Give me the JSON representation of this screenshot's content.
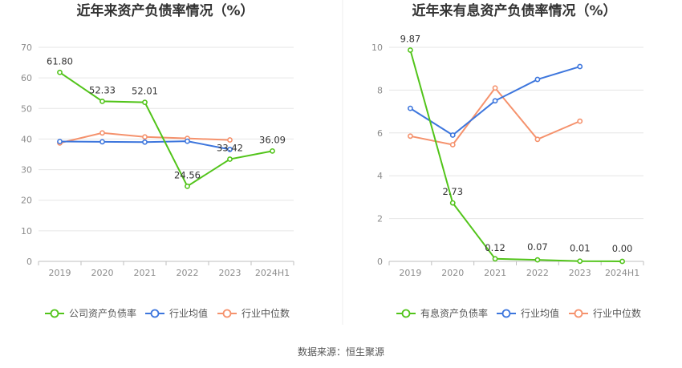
{
  "source_note": "数据来源：恒生聚源",
  "colors": {
    "green": "#52c41a",
    "blue": "#3d76dd",
    "orange": "#f5926d",
    "grid": "#e6e6e6",
    "axis": "#bfbfbf"
  },
  "chart_data": [
    {
      "type": "line",
      "title": "近年来资产负债率情况（%）",
      "categories": [
        "2019",
        "2020",
        "2021",
        "2022",
        "2023",
        "2024H1"
      ],
      "ylim": [
        0,
        70
      ],
      "yticks": [
        0,
        10,
        20,
        30,
        40,
        50,
        60,
        70
      ],
      "yticklabels": [
        "0",
        "10",
        "20",
        "30",
        "40",
        "50",
        "60",
        "70"
      ],
      "grid": true,
      "legend_position": "bottom",
      "series": [
        {
          "name": "公司资产负债率",
          "color": "#52c41a",
          "values": [
            61.8,
            52.33,
            52.01,
            24.56,
            33.42,
            36.09
          ],
          "labels": [
            "61.80",
            "52.33",
            "52.01",
            "24.56",
            "33.42",
            "36.09"
          ]
        },
        {
          "name": "行业均值",
          "color": "#3d76dd",
          "values": [
            39.2,
            39.1,
            39.0,
            39.3,
            36.6,
            null
          ]
        },
        {
          "name": "行业中位数",
          "color": "#f5926d",
          "values": [
            38.7,
            42.0,
            40.7,
            40.2,
            39.7,
            null
          ]
        }
      ]
    },
    {
      "type": "line",
      "title": "近年来有息资产负债率情况（%）",
      "categories": [
        "2019",
        "2020",
        "2021",
        "2022",
        "2023",
        "2024H1"
      ],
      "ylim": [
        0,
        10
      ],
      "yticks": [
        0,
        2,
        4,
        6,
        8,
        10
      ],
      "yticklabels": [
        "0",
        "2",
        "4",
        "6",
        "8",
        "10"
      ],
      "grid": true,
      "legend_position": "bottom",
      "series": [
        {
          "name": "有息资产负债率",
          "color": "#52c41a",
          "values": [
            9.87,
            2.73,
            0.12,
            0.07,
            0.01,
            0.0
          ],
          "labels": [
            "9.87",
            "2.73",
            "0.12",
            "0.07",
            "0.01",
            "0.00"
          ]
        },
        {
          "name": "行业均值",
          "color": "#3d76dd",
          "values": [
            7.15,
            5.9,
            7.5,
            8.5,
            9.1,
            null
          ]
        },
        {
          "name": "行业中位数",
          "color": "#f5926d",
          "values": [
            5.85,
            5.45,
            8.1,
            5.7,
            6.55,
            null
          ]
        }
      ]
    }
  ]
}
